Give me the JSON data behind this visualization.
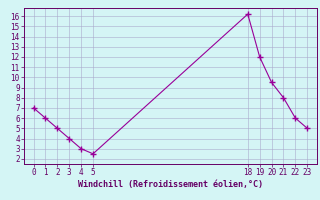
{
  "x": [
    0,
    1,
    2,
    3,
    4,
    5,
    18,
    19,
    20,
    21,
    22,
    23
  ],
  "y": [
    7.0,
    6.0,
    5.0,
    4.0,
    3.0,
    2.5,
    16.2,
    12.0,
    9.5,
    8.0,
    6.0,
    5.0
  ],
  "line_color": "#990099",
  "marker": "+",
  "marker_size": 4,
  "marker_linewidth": 1.0,
  "line_width": 0.8,
  "bg_color": "#d4f5f5",
  "grid_color": "#aaaacc",
  "spine_color": "#660066",
  "xlabel": "Windchill (Refroidissement éolien,°C)",
  "xlabel_color": "#660066",
  "tick_color": "#660066",
  "xticks": [
    0,
    1,
    2,
    3,
    4,
    5,
    18,
    19,
    20,
    21,
    22,
    23
  ],
  "yticks": [
    2,
    3,
    4,
    5,
    6,
    7,
    8,
    9,
    10,
    11,
    12,
    13,
    14,
    15,
    16
  ],
  "ylim": [
    1.5,
    16.8
  ],
  "xlim": [
    -0.8,
    23.8
  ],
  "tick_fontsize": 5.5,
  "xlabel_fontsize": 6.0
}
